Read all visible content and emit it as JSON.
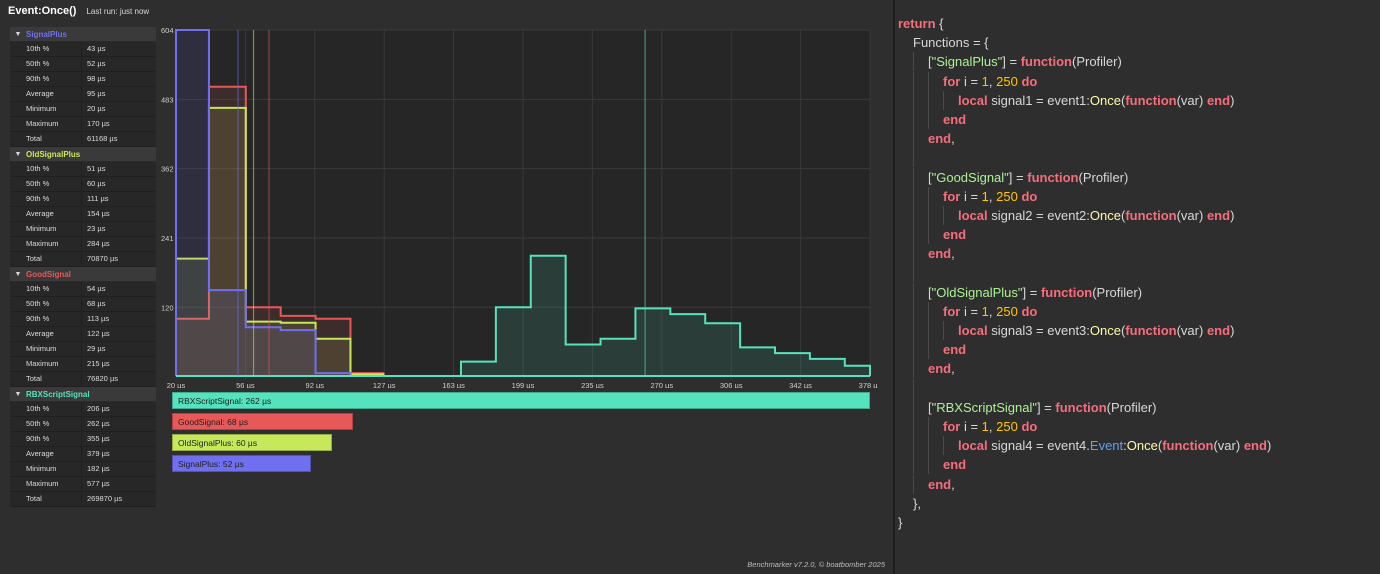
{
  "header": {
    "title": "Event:Once()",
    "last_run": "Last run: just now"
  },
  "stats": [
    {
      "name": "SignalPlus",
      "color": "#6f6ff0",
      "rows": [
        [
          "10th %",
          "43 µs"
        ],
        [
          "50th %",
          "52 µs"
        ],
        [
          "90th %",
          "98 µs"
        ],
        [
          "Average",
          "95 µs"
        ],
        [
          "Minimum",
          "20 µs"
        ],
        [
          "Maximum",
          "170 µs"
        ],
        [
          "Total",
          "61168 µs"
        ]
      ]
    },
    {
      "name": "OldSignalPlus",
      "color": "#c6e85a",
      "rows": [
        [
          "10th %",
          "51 µs"
        ],
        [
          "50th %",
          "60 µs"
        ],
        [
          "90th %",
          "111 µs"
        ],
        [
          "Average",
          "154 µs"
        ],
        [
          "Minimum",
          "23 µs"
        ],
        [
          "Maximum",
          "284 µs"
        ],
        [
          "Total",
          "70870 µs"
        ]
      ]
    },
    {
      "name": "GoodSignal",
      "color": "#e85858",
      "rows": [
        [
          "10th %",
          "54 µs"
        ],
        [
          "50th %",
          "68 µs"
        ],
        [
          "90th %",
          "113 µs"
        ],
        [
          "Average",
          "122 µs"
        ],
        [
          "Minimum",
          "29 µs"
        ],
        [
          "Maximum",
          "215 µs"
        ],
        [
          "Total",
          "76820 µs"
        ]
      ]
    },
    {
      "name": "RBXScriptSignal",
      "color": "#55e3bd",
      "rows": [
        [
          "10th %",
          "206 µs"
        ],
        [
          "50th %",
          "262 µs"
        ],
        [
          "90th %",
          "355 µs"
        ],
        [
          "Average",
          "379 µs"
        ],
        [
          "Minimum",
          "182 µs"
        ],
        [
          "Maximum",
          "577 µs"
        ],
        [
          "Total",
          "269870 µs"
        ]
      ]
    }
  ],
  "chart_data": {
    "type": "line",
    "x_ticks": [
      "20 µs",
      "56 µs",
      "92 µs",
      "127 µs",
      "163 µs",
      "199 µs",
      "235 µs",
      "270 µs",
      "306 µs",
      "342 µs",
      "378 µs"
    ],
    "y_ticks": [
      "120",
      "241",
      "362",
      "483",
      "604"
    ],
    "xlim": [
      20,
      378
    ],
    "ylim": [
      0,
      604
    ],
    "series": [
      {
        "name": "RBXScriptSignal",
        "color": "#55e3bd",
        "x": [
          20,
          149,
          167,
          185,
          203,
          221,
          239,
          257,
          275,
          293,
          311,
          329,
          347,
          365,
          378
        ],
        "values": [
          0,
          0,
          25,
          120,
          210,
          55,
          65,
          118,
          108,
          92,
          50,
          40,
          30,
          18,
          0
        ],
        "median": 262
      },
      {
        "name": "GoodSignal",
        "color": "#e85858",
        "x": [
          20,
          37,
          56,
          74,
          92,
          110,
          127
        ],
        "values": [
          100,
          505,
          120,
          105,
          100,
          5,
          0
        ],
        "median": 68
      },
      {
        "name": "OldSignalPlus",
        "color": "#c6e85a",
        "x": [
          20,
          37,
          56,
          74,
          92,
          110,
          127
        ],
        "values": [
          205,
          468,
          95,
          93,
          65,
          3,
          0
        ],
        "median": 60
      },
      {
        "name": "SignalPlus",
        "color": "#6f6ff0",
        "x": [
          20,
          37,
          56,
          74,
          92,
          110,
          127
        ],
        "values": [
          604,
          150,
          85,
          80,
          5,
          0,
          0
        ],
        "median": 52
      }
    ]
  },
  "bars": [
    {
      "label": "RBXScriptSignal: 262 µs",
      "value": 262,
      "color": "#55e3bd"
    },
    {
      "label": "GoodSignal: 68 µs",
      "value": 68,
      "color": "#e85858"
    },
    {
      "label": "OldSignalPlus: 60 µs",
      "value": 60,
      "color": "#c6e85a"
    },
    {
      "label": "SignalPlus: 52 µs",
      "value": 52,
      "color": "#6f6ff0"
    }
  ],
  "footer": "Benchmarker v7.2.0, © boatbomber 2025",
  "code": {
    "lines": [
      [
        [
          0,
          ""
        ],
        [
          "kw",
          "return"
        ],
        [
          "",
          " {"
        ]
      ],
      [
        [
          1,
          ""
        ],
        [
          "",
          "Functions = {"
        ]
      ],
      [
        [
          2,
          ""
        ],
        [
          "",
          "["
        ],
        [
          "str",
          "\"SignalPlus\""
        ],
        [
          "",
          "] = "
        ],
        [
          "kw",
          "function"
        ],
        [
          "",
          "(Profiler)"
        ]
      ],
      [
        [
          3,
          ""
        ],
        [
          "kw",
          "for"
        ],
        [
          "",
          " i = "
        ],
        [
          "num",
          "1"
        ],
        [
          "",
          ", "
        ],
        [
          "num",
          "250"
        ],
        [
          "",
          " "
        ],
        [
          "kw",
          "do"
        ]
      ],
      [
        [
          4,
          ""
        ],
        [
          "kw",
          "local"
        ],
        [
          "",
          " signal1 = event1:"
        ],
        [
          "fn",
          "Once"
        ],
        [
          "",
          "("
        ],
        [
          "kw",
          "function"
        ],
        [
          "",
          "(var) "
        ],
        [
          "kw",
          "end"
        ],
        [
          "",
          ")"
        ]
      ],
      [
        [
          3,
          ""
        ],
        [
          "kw",
          "end"
        ]
      ],
      [
        [
          2,
          ""
        ],
        [
          "kw",
          "end"
        ],
        [
          "",
          ","
        ]
      ],
      [
        [
          2,
          ""
        ]
      ],
      [
        [
          2,
          ""
        ],
        [
          "",
          "["
        ],
        [
          "str",
          "\"GoodSignal\""
        ],
        [
          "",
          "] = "
        ],
        [
          "kw",
          "function"
        ],
        [
          "",
          "(Profiler)"
        ]
      ],
      [
        [
          3,
          ""
        ],
        [
          "kw",
          "for"
        ],
        [
          "",
          " i = "
        ],
        [
          "num",
          "1"
        ],
        [
          "",
          ", "
        ],
        [
          "num",
          "250"
        ],
        [
          "",
          " "
        ],
        [
          "kw",
          "do"
        ]
      ],
      [
        [
          4,
          ""
        ],
        [
          "kw",
          "local"
        ],
        [
          "",
          " signal2 = event2:"
        ],
        [
          "fn",
          "Once"
        ],
        [
          "",
          "("
        ],
        [
          "kw",
          "function"
        ],
        [
          "",
          "(var) "
        ],
        [
          "kw",
          "end"
        ],
        [
          "",
          ")"
        ]
      ],
      [
        [
          3,
          ""
        ],
        [
          "kw",
          "end"
        ]
      ],
      [
        [
          2,
          ""
        ],
        [
          "kw",
          "end"
        ],
        [
          "",
          ","
        ]
      ],
      [
        [
          2,
          ""
        ]
      ],
      [
        [
          2,
          ""
        ],
        [
          "",
          "["
        ],
        [
          "str",
          "\"OldSignalPlus\""
        ],
        [
          "",
          "] = "
        ],
        [
          "kw",
          "function"
        ],
        [
          "",
          "(Profiler)"
        ]
      ],
      [
        [
          3,
          ""
        ],
        [
          "kw",
          "for"
        ],
        [
          "",
          " i = "
        ],
        [
          "num",
          "1"
        ],
        [
          "",
          ", "
        ],
        [
          "num",
          "250"
        ],
        [
          "",
          " "
        ],
        [
          "kw",
          "do"
        ]
      ],
      [
        [
          4,
          ""
        ],
        [
          "kw",
          "local"
        ],
        [
          "",
          " signal3 = event3:"
        ],
        [
          "fn",
          "Once"
        ],
        [
          "",
          "("
        ],
        [
          "kw",
          "function"
        ],
        [
          "",
          "(var) "
        ],
        [
          "kw",
          "end"
        ],
        [
          "",
          ")"
        ]
      ],
      [
        [
          3,
          ""
        ],
        [
          "kw",
          "end"
        ]
      ],
      [
        [
          2,
          ""
        ],
        [
          "kw",
          "end"
        ],
        [
          "",
          ","
        ]
      ],
      [
        [
          2,
          ""
        ]
      ],
      [
        [
          2,
          ""
        ],
        [
          "",
          "["
        ],
        [
          "str",
          "\"RBXScriptSignal\""
        ],
        [
          "",
          "] = "
        ],
        [
          "kw",
          "function"
        ],
        [
          "",
          "(Profiler)"
        ]
      ],
      [
        [
          3,
          ""
        ],
        [
          "kw",
          "for"
        ],
        [
          "",
          " i = "
        ],
        [
          "num",
          "1"
        ],
        [
          "",
          ", "
        ],
        [
          "num",
          "250"
        ],
        [
          "",
          " "
        ],
        [
          "kw",
          "do"
        ]
      ],
      [
        [
          4,
          ""
        ],
        [
          "kw",
          "local"
        ],
        [
          "",
          " signal4 = event4."
        ],
        [
          "prop",
          "Event"
        ],
        [
          "",
          ":"
        ],
        [
          "fn",
          "Once"
        ],
        [
          "",
          "("
        ],
        [
          "kw",
          "function"
        ],
        [
          "",
          "(var) "
        ],
        [
          "kw",
          "end"
        ],
        [
          "",
          ")"
        ]
      ],
      [
        [
          3,
          ""
        ],
        [
          "kw",
          "end"
        ]
      ],
      [
        [
          2,
          ""
        ],
        [
          "kw",
          "end"
        ],
        [
          "",
          ","
        ]
      ],
      [
        [
          1,
          ""
        ],
        [
          "",
          "},"
        ]
      ],
      [
        [
          0,
          ""
        ],
        [
          "",
          "}"
        ]
      ]
    ]
  }
}
